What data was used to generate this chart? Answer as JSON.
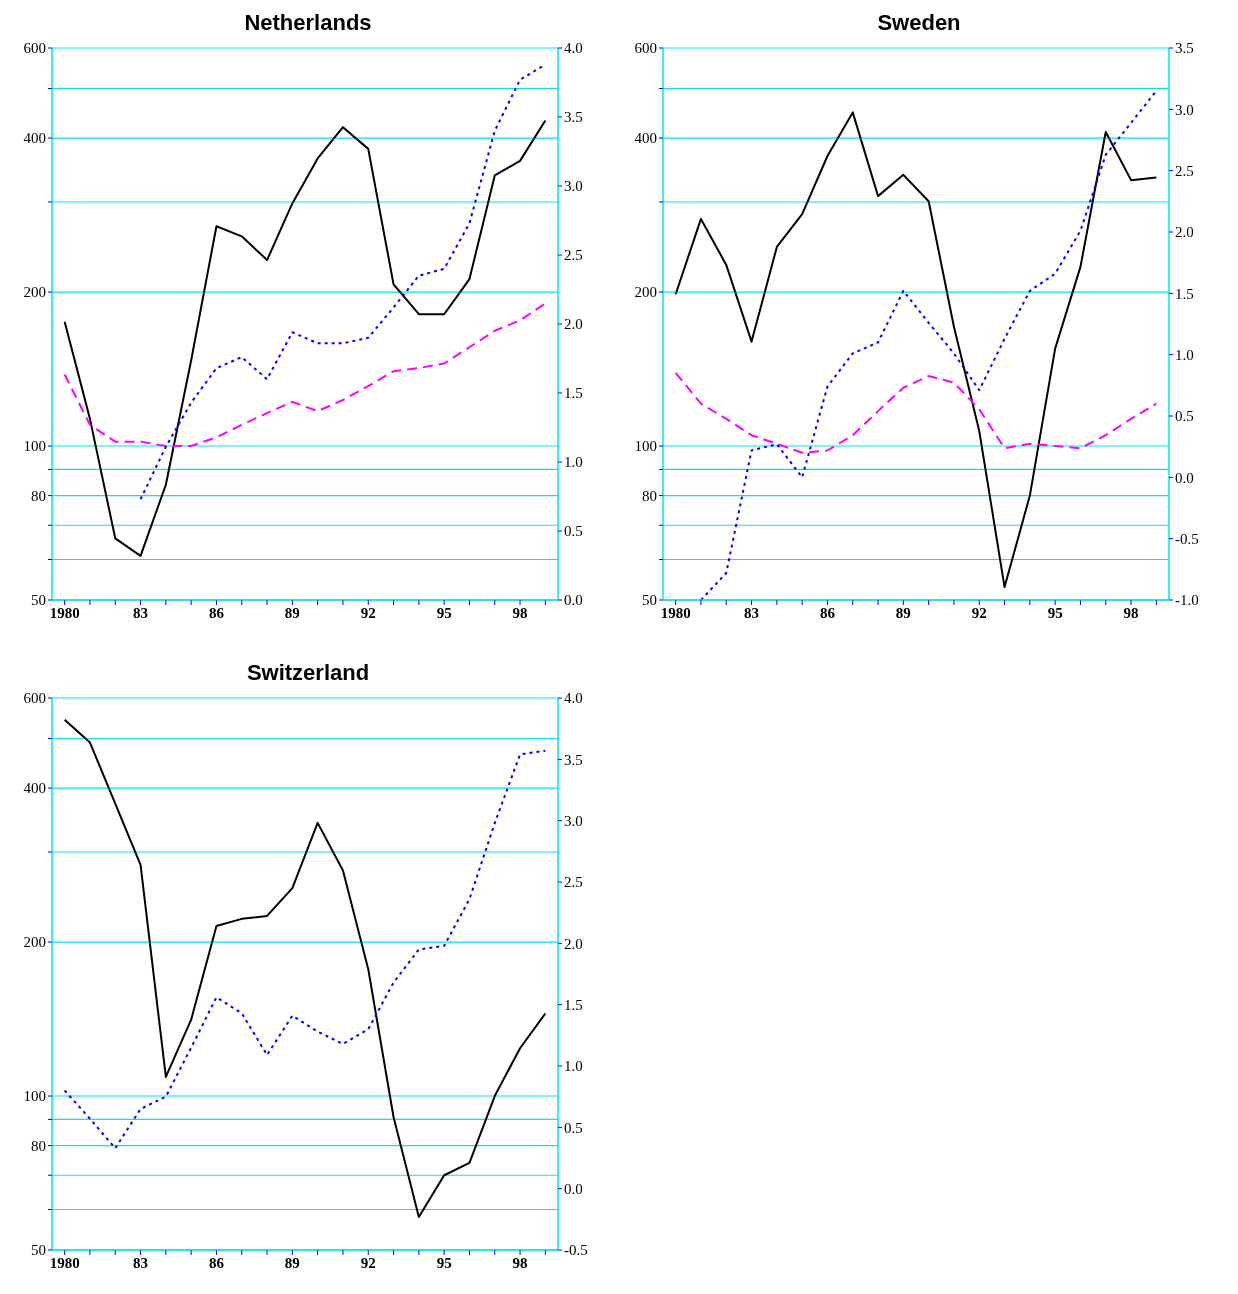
{
  "chart_data": [
    {
      "type": "line",
      "title": "Netherlands",
      "log": "y",
      "grid": "y",
      "xlim": [
        1979.5,
        1999.5
      ],
      "xticks": [
        {
          "value": 1980,
          "label": "1980"
        },
        {
          "value": 1981,
          "label": null
        },
        {
          "value": 1982,
          "label": null
        },
        {
          "value": 1983,
          "label": "83"
        },
        {
          "value": 1984,
          "label": null
        },
        {
          "value": 1985,
          "label": null
        },
        {
          "value": 1986,
          "label": "86"
        },
        {
          "value": 1987,
          "label": null
        },
        {
          "value": 1988,
          "label": null
        },
        {
          "value": 1989,
          "label": "89"
        },
        {
          "value": 1990,
          "label": null
        },
        {
          "value": 1991,
          "label": null
        },
        {
          "value": 1992,
          "label": "92"
        },
        {
          "value": 1993,
          "label": null
        },
        {
          "value": 1994,
          "label": null
        },
        {
          "value": 1995,
          "label": "95"
        },
        {
          "value": 1996,
          "label": null
        },
        {
          "value": 1997,
          "label": null
        },
        {
          "value": 1998,
          "label": "98"
        },
        {
          "value": 1999,
          "label": null
        }
      ],
      "ylim": [
        50,
        600
      ],
      "yticks": [
        50,
        {
          "value": 60,
          "label": null
        },
        {
          "value": 70,
          "label": null
        },
        80,
        {
          "value": 90,
          "label": null
        },
        100,
        200,
        {
          "value": 300,
          "label": null
        },
        400,
        {
          "value": 500,
          "label": null
        },
        600
      ],
      "y2lim": [
        0,
        4
      ],
      "y2ticks": [
        {
          "value": 0,
          "label": "0.0"
        },
        {
          "value": 0.5,
          "label": "0.5"
        },
        {
          "value": 1,
          "label": "1.0"
        },
        {
          "value": 1.5,
          "label": "1.5"
        },
        {
          "value": 2,
          "label": "2.0"
        },
        {
          "value": 2.5,
          "label": "2.5"
        },
        {
          "value": 3,
          "label": "3.0"
        },
        {
          "value": 3.5,
          "label": "3.5"
        },
        {
          "value": 4,
          "label": "4.0"
        }
      ],
      "x": [
        1980,
        1981,
        1982,
        1983,
        1984,
        1985,
        1986,
        1987,
        1988,
        1989,
        1990,
        1991,
        1992,
        1993,
        1994,
        1995,
        1996,
        1997,
        1998,
        1999
      ],
      "series": [
        {
          "color": "#000000",
          "line_style": "solid",
          "values": [
            175,
            113,
            66,
            61,
            84,
            147,
            269,
            257,
            231,
            298,
            365,
            420,
            381,
            207,
            181,
            181,
            212,
            338,
            361,
            433
          ]
        },
        {
          "color": "#ff00ff",
          "line_style": "dashed",
          "values": [
            138,
            110,
            102,
            102,
            100,
            100,
            104,
            110,
            116,
            122,
            117,
            123,
            131,
            140,
            142,
            145,
            156,
            168,
            176,
            190
          ]
        },
        {
          "color": "#0000ff",
          "line_style": "dotted",
          "axis": "y2",
          "values": [
            null,
            null,
            null,
            0.73,
            1.11,
            1.43,
            1.68,
            1.76,
            1.6,
            1.94,
            1.86,
            1.86,
            1.9,
            2.12,
            2.35,
            2.4,
            2.73,
            3.4,
            3.77,
            3.88
          ]
        }
      ]
    },
    {
      "type": "line",
      "title": "Sweden",
      "log": "y",
      "grid": "y",
      "xlim": [
        1979.5,
        1999.5
      ],
      "xticks": [
        {
          "value": 1980,
          "label": "1980"
        },
        {
          "value": 1981,
          "label": null
        },
        {
          "value": 1982,
          "label": null
        },
        {
          "value": 1983,
          "label": "83"
        },
        {
          "value": 1984,
          "label": null
        },
        {
          "value": 1985,
          "label": null
        },
        {
          "value": 1986,
          "label": "86"
        },
        {
          "value": 1987,
          "label": null
        },
        {
          "value": 1988,
          "label": null
        },
        {
          "value": 1989,
          "label": "89"
        },
        {
          "value": 1990,
          "label": null
        },
        {
          "value": 1991,
          "label": null
        },
        {
          "value": 1992,
          "label": "92"
        },
        {
          "value": 1993,
          "label": null
        },
        {
          "value": 1994,
          "label": null
        },
        {
          "value": 1995,
          "label": "95"
        },
        {
          "value": 1996,
          "label": null
        },
        {
          "value": 1997,
          "label": null
        },
        {
          "value": 1998,
          "label": "98"
        },
        {
          "value": 1999,
          "label": null
        }
      ],
      "ylim": [
        50,
        600
      ],
      "yticks": [
        50,
        {
          "value": 60,
          "label": null
        },
        {
          "value": 70,
          "label": null
        },
        80,
        {
          "value": 90,
          "label": null
        },
        100,
        200,
        {
          "value": 300,
          "label": null
        },
        400,
        {
          "value": 500,
          "label": null
        },
        600
      ],
      "y2lim": [
        -1,
        3.5
      ],
      "y2ticks": [
        {
          "value": -1,
          "label": "-1.0"
        },
        {
          "value": -0.5,
          "label": "-0.5"
        },
        {
          "value": 0,
          "label": "0.0"
        },
        {
          "value": 0.5,
          "label": "0.5"
        },
        {
          "value": 1,
          "label": "1.0"
        },
        {
          "value": 1.5,
          "label": "1.5"
        },
        {
          "value": 2,
          "label": "2.0"
        },
        {
          "value": 2.5,
          "label": "2.5"
        },
        {
          "value": 3,
          "label": "3.0"
        },
        {
          "value": 3.5,
          "label": "3.5"
        }
      ],
      "x": [
        1980,
        1981,
        1982,
        1983,
        1984,
        1985,
        1986,
        1987,
        1988,
        1989,
        1990,
        1991,
        1992,
        1993,
        1994,
        1995,
        1996,
        1997,
        1998,
        1999
      ],
      "series": [
        {
          "color": "#000000",
          "line_style": "solid",
          "values": [
            198,
            278,
            226,
            160,
            245,
            284,
            369,
            449,
            308,
            339,
            301,
            171,
            107,
            53,
            80,
            155,
            224,
            411,
            331,
            335
          ]
        },
        {
          "color": "#ff00ff",
          "line_style": "dashed",
          "values": [
            139,
            121,
            113,
            105,
            101,
            97,
            98,
            105,
            117,
            130,
            137,
            133,
            118,
            99,
            101,
            100,
            99,
            105,
            113,
            121
          ]
        },
        {
          "color": "#0000ff",
          "line_style": "dotted",
          "axis": "y2",
          "values": [
            null,
            -1,
            -0.78,
            0.22,
            0.27,
            0,
            0.74,
            1.01,
            1.1,
            1.52,
            1.26,
            1.01,
            0.71,
            1.13,
            1.52,
            1.66,
            2.01,
            2.63,
            2.89,
            3.15
          ]
        }
      ]
    },
    {
      "type": "line",
      "title": "Switzerland",
      "log": "y",
      "grid": "y",
      "xlim": [
        1979.5,
        1999.5
      ],
      "xticks": [
        {
          "value": 1980,
          "label": "1980"
        },
        {
          "value": 1981,
          "label": null
        },
        {
          "value": 1982,
          "label": null
        },
        {
          "value": 1983,
          "label": "83"
        },
        {
          "value": 1984,
          "label": null
        },
        {
          "value": 1985,
          "label": null
        },
        {
          "value": 1986,
          "label": "86"
        },
        {
          "value": 1987,
          "label": null
        },
        {
          "value": 1988,
          "label": null
        },
        {
          "value": 1989,
          "label": "89"
        },
        {
          "value": 1990,
          "label": null
        },
        {
          "value": 1991,
          "label": null
        },
        {
          "value": 1992,
          "label": "92"
        },
        {
          "value": 1993,
          "label": null
        },
        {
          "value": 1994,
          "label": null
        },
        {
          "value": 1995,
          "label": "95"
        },
        {
          "value": 1996,
          "label": null
        },
        {
          "value": 1997,
          "label": null
        },
        {
          "value": 1998,
          "label": "98"
        },
        {
          "value": 1999,
          "label": null
        }
      ],
      "ylim": [
        50,
        600
      ],
      "yticks": [
        50,
        {
          "value": 60,
          "label": null
        },
        {
          "value": 70,
          "label": null
        },
        80,
        {
          "value": 90,
          "label": null
        },
        100,
        200,
        {
          "value": 300,
          "label": null
        },
        400,
        {
          "value": 500,
          "label": null
        },
        600
      ],
      "y2lim": [
        -0.5,
        4
      ],
      "y2ticks": [
        {
          "value": -0.5,
          "label": "-0.5"
        },
        {
          "value": 0,
          "label": "0.0"
        },
        {
          "value": 0.5,
          "label": "0.5"
        },
        {
          "value": 1,
          "label": "1.0"
        },
        {
          "value": 1.5,
          "label": "1.5"
        },
        {
          "value": 2,
          "label": "2.0"
        },
        {
          "value": 2.5,
          "label": "2.5"
        },
        {
          "value": 3,
          "label": "3.0"
        },
        {
          "value": 3.5,
          "label": "3.5"
        },
        {
          "value": 4,
          "label": "4.0"
        }
      ],
      "x": [
        1980,
        1981,
        1982,
        1983,
        1984,
        1985,
        1986,
        1987,
        1988,
        1989,
        1990,
        1991,
        1992,
        1993,
        1994,
        1995,
        1996,
        1997,
        1998,
        1999
      ],
      "series": [
        {
          "color": "#000000",
          "line_style": "solid",
          "values": [
            544,
            491,
            373,
            283,
            109,
            141,
            215,
            222,
            225,
            255,
            342,
            276,
            177,
            91,
            58,
            70,
            74,
            100,
            124,
            145
          ]
        },
        {
          "color": "#0000ff",
          "line_style": "dotted",
          "axis": "y2",
          "values": [
            0.8,
            0.57,
            0.33,
            0.65,
            0.75,
            1.15,
            1.56,
            1.43,
            1.09,
            1.41,
            1.28,
            1.18,
            1.3,
            1.68,
            1.95,
            1.98,
            2.36,
            2.98,
            3.54,
            3.57
          ]
        }
      ]
    }
  ]
}
